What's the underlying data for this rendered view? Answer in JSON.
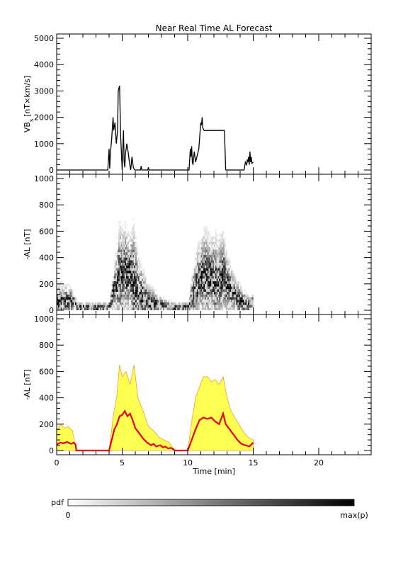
{
  "chart_data": [
    {
      "type": "line",
      "title": "Near Real Time AL Forecast",
      "ylabel_main": "VB",
      "ylabel_sub": "s",
      "ylabel_unit": "[nT×km/s]",
      "xlim": [
        0,
        24
      ],
      "ylim": [
        0,
        5000
      ],
      "yticks": [
        0,
        1000,
        2000,
        3000,
        4000,
        5000
      ],
      "grid": false,
      "series": [
        {
          "color": "#000000",
          "x": [
            0,
            3.8,
            3.9,
            4.0,
            4.05,
            4.1,
            4.2,
            4.3,
            4.35,
            4.45,
            4.55,
            4.65,
            4.7,
            4.8,
            4.88,
            5.0,
            5.05,
            5.1,
            5.15,
            5.2,
            5.25,
            5.35,
            5.45,
            5.55,
            5.65,
            5.75,
            5.85,
            5.95,
            6.0,
            6.4,
            6.45,
            6.5,
            6.6,
            6.95,
            7.0,
            7.05,
            7.1,
            10.0,
            10.1,
            10.2,
            10.25,
            10.3,
            10.35,
            10.4,
            10.5,
            10.6,
            10.75,
            10.85,
            10.95,
            11.0,
            11.05,
            11.1,
            11.15,
            11.25,
            11.35,
            11.4,
            12.8,
            12.85,
            12.9,
            13.0,
            13.05,
            13.1,
            14.3,
            14.4,
            14.5,
            14.55,
            14.6,
            14.65,
            14.7,
            14.75,
            14.8,
            14.85,
            14.9,
            15.0
          ],
          "y": [
            0,
            0,
            0,
            800,
            50,
            600,
            1200,
            2000,
            1500,
            1800,
            1000,
            1500,
            3000,
            3200,
            1300,
            0,
            800,
            1500,
            300,
            100,
            600,
            1000,
            700,
            300,
            0,
            500,
            100,
            0,
            0,
            0,
            150,
            0,
            0,
            0,
            100,
            0,
            0,
            0,
            0,
            800,
            500,
            900,
            300,
            200,
            700,
            300,
            600,
            800,
            1500,
            1800,
            1700,
            2000,
            1600,
            1500,
            1500,
            1500,
            1500,
            800,
            0,
            0,
            0,
            0,
            0,
            300,
            200,
            400,
            300,
            500,
            200,
            700,
            300,
            500,
            250,
            300
          ]
        }
      ]
    },
    {
      "type": "heatmap",
      "ylabel": "-AL [nT]",
      "xlim": [
        0,
        24
      ],
      "ylim": [
        0,
        1000
      ],
      "yticks": [
        0,
        200,
        400,
        600,
        800,
        1000
      ],
      "grid": false,
      "colorscale": "grayscale, white = 0 to black = max(p)",
      "time_range": [
        0,
        15
      ]
    },
    {
      "type": "area",
      "ylabel": "-AL [nT]",
      "xlabel": "Time [min]",
      "xlim": [
        0,
        24
      ],
      "ylim": [
        0,
        1000
      ],
      "xticks": [
        0,
        5,
        10,
        15,
        20
      ],
      "yticks": [
        0,
        200,
        400,
        600,
        800,
        1000
      ],
      "grid": false,
      "series": [
        {
          "color": "#ee0000",
          "x": [
            0,
            0.3,
            0.5,
            0.8,
            1.1,
            1.3,
            1.45,
            1.5,
            4.0,
            4.2,
            4.4,
            4.6,
            4.8,
            5.0,
            5.2,
            5.4,
            5.6,
            5.8,
            6.0,
            6.3,
            6.6,
            6.9,
            7.2,
            7.4,
            7.6,
            7.9,
            8.1,
            8.3,
            8.5,
            8.7,
            8.9,
            9.0,
            10.0,
            10.3,
            10.6,
            10.9,
            11.2,
            11.5,
            11.8,
            12.1,
            12.4,
            12.7,
            12.9,
            13.2,
            13.5,
            13.8,
            14.1,
            14.4,
            14.7,
            15.0
          ],
          "y": [
            45,
            60,
            55,
            65,
            50,
            60,
            45,
            0,
            0,
            80,
            160,
            200,
            260,
            270,
            300,
            260,
            280,
            230,
            170,
            130,
            90,
            60,
            40,
            50,
            30,
            40,
            25,
            30,
            15,
            20,
            10,
            0,
            0,
            80,
            160,
            230,
            250,
            240,
            250,
            220,
            200,
            280,
            200,
            160,
            120,
            80,
            50,
            40,
            30,
            60
          ]
        },
        {
          "color": "#ffff33",
          "x": [
            0,
            0.3,
            0.6,
            0.9,
            1.2,
            1.5,
            4.0,
            4.3,
            4.6,
            4.8,
            5.0,
            5.3,
            5.6,
            5.9,
            6.2,
            6.6,
            7.0,
            7.4,
            7.8,
            8.2,
            8.6,
            9.0,
            10.0,
            10.3,
            10.6,
            10.9,
            11.2,
            11.5,
            11.8,
            12.1,
            12.4,
            12.7,
            13.0,
            13.3,
            13.6,
            13.9,
            14.2,
            14.6,
            15.0
          ],
          "y": [
            150,
            200,
            170,
            180,
            150,
            0,
            0,
            250,
            420,
            650,
            560,
            600,
            500,
            650,
            400,
            300,
            180,
            150,
            100,
            80,
            60,
            0,
            0,
            220,
            400,
            480,
            560,
            560,
            520,
            540,
            500,
            560,
            400,
            300,
            250,
            200,
            150,
            100,
            80
          ]
        }
      ]
    },
    {
      "type": "colorbar",
      "label": "pdf",
      "min_label": "0",
      "max_label": "max(p)"
    }
  ]
}
